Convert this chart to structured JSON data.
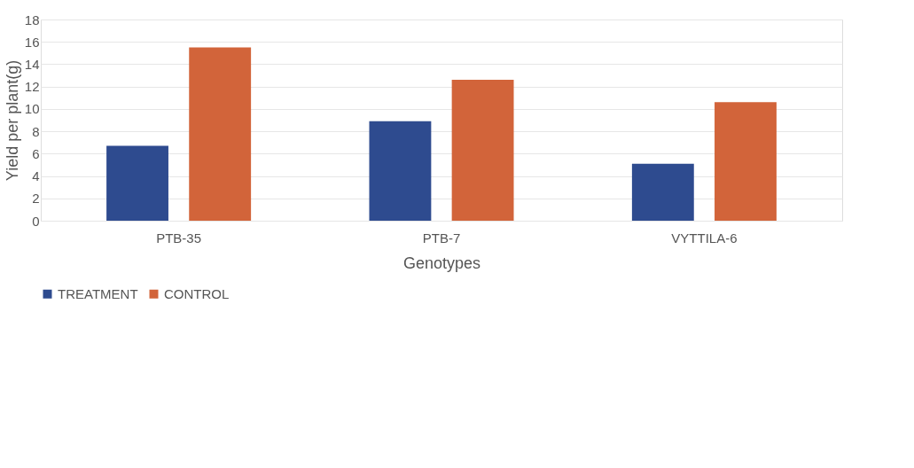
{
  "chart_data": {
    "type": "bar",
    "xlabel": "Genotypes",
    "ylabel": "Yield per plant(g)",
    "categories": [
      "PTB-35",
      "PTB-7",
      "VYTTILA-6"
    ],
    "series": [
      {
        "name": "TREATMENT",
        "color": "#2e4b8f",
        "values": [
          6.7,
          8.9,
          5.1
        ]
      },
      {
        "name": "CONTROL",
        "color": "#d2643a",
        "values": [
          15.5,
          12.6,
          10.6
        ]
      }
    ],
    "ylim": [
      0,
      18
    ],
    "yticks": [
      0,
      2,
      4,
      6,
      8,
      10,
      12,
      14,
      16,
      18
    ],
    "grid": "y",
    "legend": "bottom"
  }
}
